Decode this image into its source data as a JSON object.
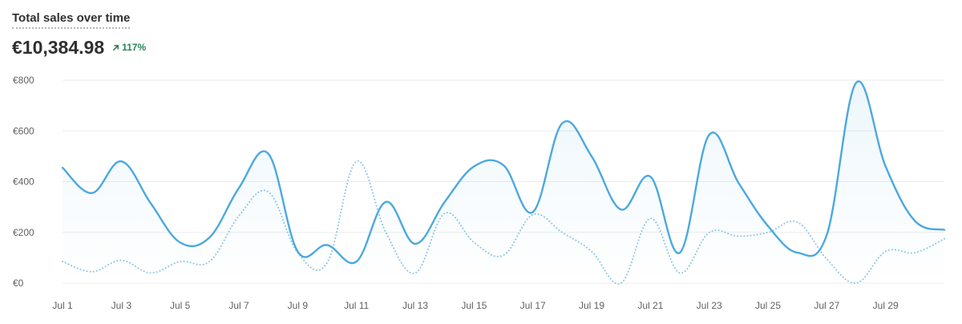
{
  "card": {
    "title": "Total sales over time",
    "total": "€10,384.98",
    "change": "117%",
    "change_direction": "up",
    "change_color": "#29845a"
  },
  "chart_data": {
    "type": "line",
    "title": "Total sales over time",
    "ylim": [
      0,
      800
    ],
    "yticks": [
      0,
      200,
      400,
      600,
      800
    ],
    "ytick_labels": [
      "€0",
      "€200",
      "€400",
      "€600",
      "€800"
    ],
    "categories": [
      "Jul 1",
      "Jul 2",
      "Jul 3",
      "Jul 4",
      "Jul 5",
      "Jul 6",
      "Jul 7",
      "Jul 8",
      "Jul 9",
      "Jul 10",
      "Jul 11",
      "Jul 12",
      "Jul 13",
      "Jul 14",
      "Jul 15",
      "Jul 16",
      "Jul 17",
      "Jul 18",
      "Jul 19",
      "Jul 20",
      "Jul 21",
      "Jul 22",
      "Jul 23",
      "Jul 24",
      "Jul 25",
      "Jul 26",
      "Jul 27",
      "Jul 28",
      "Jul 29",
      "Jul 30",
      "Jul 31"
    ],
    "xtick_labels": [
      "Jul 1",
      "Jul 3",
      "Jul 5",
      "Jul 7",
      "Jul 9",
      "Jul 11",
      "Jul 13",
      "Jul 15",
      "Jul 17",
      "Jul 19",
      "Jul 21",
      "Jul 23",
      "Jul 25",
      "Jul 27",
      "Jul 29"
    ],
    "grid": true,
    "series": [
      {
        "style": "solid",
        "color": "#4ba9df",
        "fill": true,
        "values": [
          455,
          355,
          480,
          315,
          160,
          180,
          375,
          510,
          125,
          150,
          85,
          320,
          155,
          320,
          460,
          465,
          280,
          630,
          500,
          290,
          420,
          120,
          585,
          395,
          225,
          120,
          190,
          790,
          460,
          245,
          210
        ]
      },
      {
        "style": "dotted",
        "color": "#8ec6e4",
        "fill": false,
        "values": [
          85,
          45,
          90,
          40,
          85,
          85,
          265,
          360,
          120,
          80,
          480,
          200,
          40,
          275,
          160,
          110,
          270,
          200,
          125,
          0,
          255,
          40,
          200,
          185,
          200,
          240,
          95,
          0,
          125,
          120,
          175
        ]
      }
    ]
  }
}
